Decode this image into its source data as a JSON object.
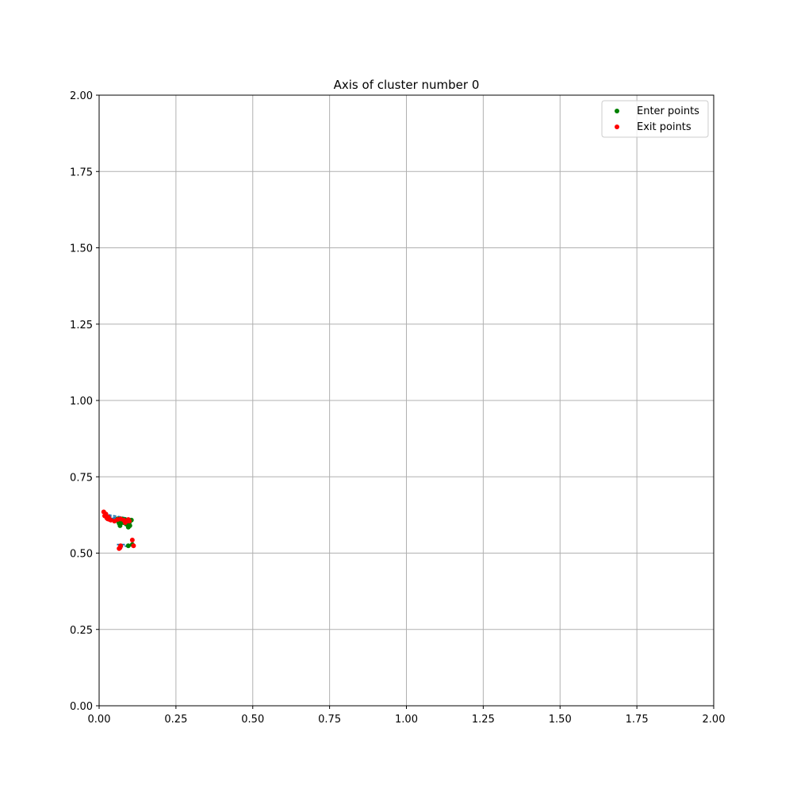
{
  "chart_data": {
    "type": "scatter",
    "title": "Axis of cluster number 0",
    "xlabel": "",
    "ylabel": "",
    "xlim": [
      0,
      2
    ],
    "ylim": [
      0,
      2
    ],
    "x_ticks": [
      "0.00",
      "0.25",
      "0.50",
      "0.75",
      "1.00",
      "1.25",
      "1.50",
      "1.75",
      "2.00"
    ],
    "y_ticks": [
      "0.00",
      "0.25",
      "0.50",
      "0.75",
      "1.00",
      "1.25",
      "1.50",
      "1.75",
      "2.00"
    ],
    "grid": true,
    "legend_position": "top-right",
    "series": [
      {
        "name": "Enter points",
        "color": "#008000",
        "points": [
          [
            0.105,
            0.608
          ],
          [
            0.098,
            0.6
          ],
          [
            0.095,
            0.585
          ],
          [
            0.1,
            0.59
          ],
          [
            0.088,
            0.595
          ],
          [
            0.075,
            0.612
          ],
          [
            0.078,
            0.6
          ],
          [
            0.068,
            0.59
          ],
          [
            0.072,
            0.605
          ],
          [
            0.085,
            0.61
          ],
          [
            0.092,
            0.602
          ],
          [
            0.062,
            0.605
          ],
          [
            0.065,
            0.598
          ],
          [
            0.108,
            0.528
          ],
          [
            0.095,
            0.524
          ],
          [
            0.06,
            0.612
          ]
        ]
      },
      {
        "name": "Exit points",
        "color": "#ff0000",
        "points": [
          [
            0.015,
            0.635
          ],
          [
            0.018,
            0.622
          ],
          [
            0.022,
            0.628
          ],
          [
            0.025,
            0.615
          ],
          [
            0.03,
            0.618
          ],
          [
            0.034,
            0.61
          ],
          [
            0.028,
            0.612
          ],
          [
            0.038,
            0.608
          ],
          [
            0.05,
            0.605
          ],
          [
            0.06,
            0.61
          ],
          [
            0.07,
            0.612
          ],
          [
            0.08,
            0.608
          ],
          [
            0.085,
            0.6
          ],
          [
            0.09,
            0.605
          ],
          [
            0.095,
            0.61
          ],
          [
            0.098,
            0.605
          ],
          [
            0.065,
            0.515
          ],
          [
            0.068,
            0.518
          ],
          [
            0.07,
            0.524
          ],
          [
            0.108,
            0.543
          ],
          [
            0.112,
            0.524
          ]
        ]
      }
    ],
    "connector_lines": {
      "color": "#1f77b4",
      "segments": [
        [
          [
            0.015,
            0.628
          ],
          [
            0.105,
            0.612
          ]
        ],
        [
          [
            0.03,
            0.62
          ],
          [
            0.1,
            0.605
          ]
        ],
        [
          [
            0.04,
            0.614
          ],
          [
            0.1,
            0.6
          ]
        ],
        [
          [
            0.055,
            0.612
          ],
          [
            0.095,
            0.592
          ]
        ],
        [
          [
            0.05,
            0.61
          ],
          [
            0.088,
            0.598
          ]
        ],
        [
          [
            0.058,
            0.528
          ],
          [
            0.108,
            0.528
          ]
        ],
        [
          [
            0.068,
            0.52
          ],
          [
            0.095,
            0.524
          ]
        ]
      ]
    }
  }
}
